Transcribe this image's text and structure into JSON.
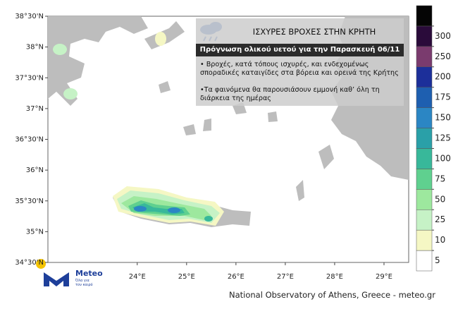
{
  "map": {
    "xlim": [
      22.19,
      29.5
    ],
    "ylim": [
      34.5,
      38.5
    ],
    "xticks": [
      {
        "value": 24,
        "label": "24°E"
      },
      {
        "value": 25,
        "label": "25°E"
      },
      {
        "value": 26,
        "label": "26°E"
      },
      {
        "value": 27,
        "label": "27°E"
      },
      {
        "value": 28,
        "label": "28°E"
      },
      {
        "value": 29,
        "label": "29°E"
      }
    ],
    "yticks": [
      {
        "value": 34.5,
        "label": "34°30'N"
      },
      {
        "value": 35,
        "label": "35°N"
      },
      {
        "value": 35.5,
        "label": "35°30'N"
      },
      {
        "value": 36,
        "label": "36°N"
      },
      {
        "value": 36.5,
        "label": "36°30'N"
      },
      {
        "value": 37,
        "label": "37°N"
      },
      {
        "value": 37.5,
        "label": "37°30'N"
      },
      {
        "value": 38,
        "label": "38°N"
      },
      {
        "value": 38.5,
        "label": "38°30'N"
      }
    ]
  },
  "colorbar": {
    "levels": [
      5,
      10,
      25,
      50,
      75,
      100,
      125,
      150,
      175,
      200,
      250,
      300
    ],
    "colors": [
      "#ffffff",
      "#f5f7c4",
      "#c6f2c6",
      "#9de89e",
      "#5fd08f",
      "#38b89a",
      "#2aa0a8",
      "#2b86c4",
      "#1e5fb0",
      "#1c2f9a",
      "#7a3b6e",
      "#2a0b3a",
      "#050505"
    ]
  },
  "info": {
    "title": "ΙΣΧΥΡΕΣ ΒΡΟΧΕΣ ΣΤΗΝ ΚΡΗΤΗ",
    "subtitle": "Πρόγνωση ολικού υετού για την Παρασκευή 06/11",
    "bullets": [
      "• Βροχές, κατά τόπους ισχυρές, και ενδεχομένως σποραδικές καταιγίδες στα βόρεια και ορεινά της Κρήτης",
      "•Τα φαινόμενα θα παρουσιάσουν εμμονή καθ’ όλη τη διάρκεια της ημέρας"
    ]
  },
  "logo": {
    "name": "Meteo",
    "tagline": "Όλα για τον καιρό"
  },
  "footer": "National Observatory of Athens, Greece - meteo.gr"
}
